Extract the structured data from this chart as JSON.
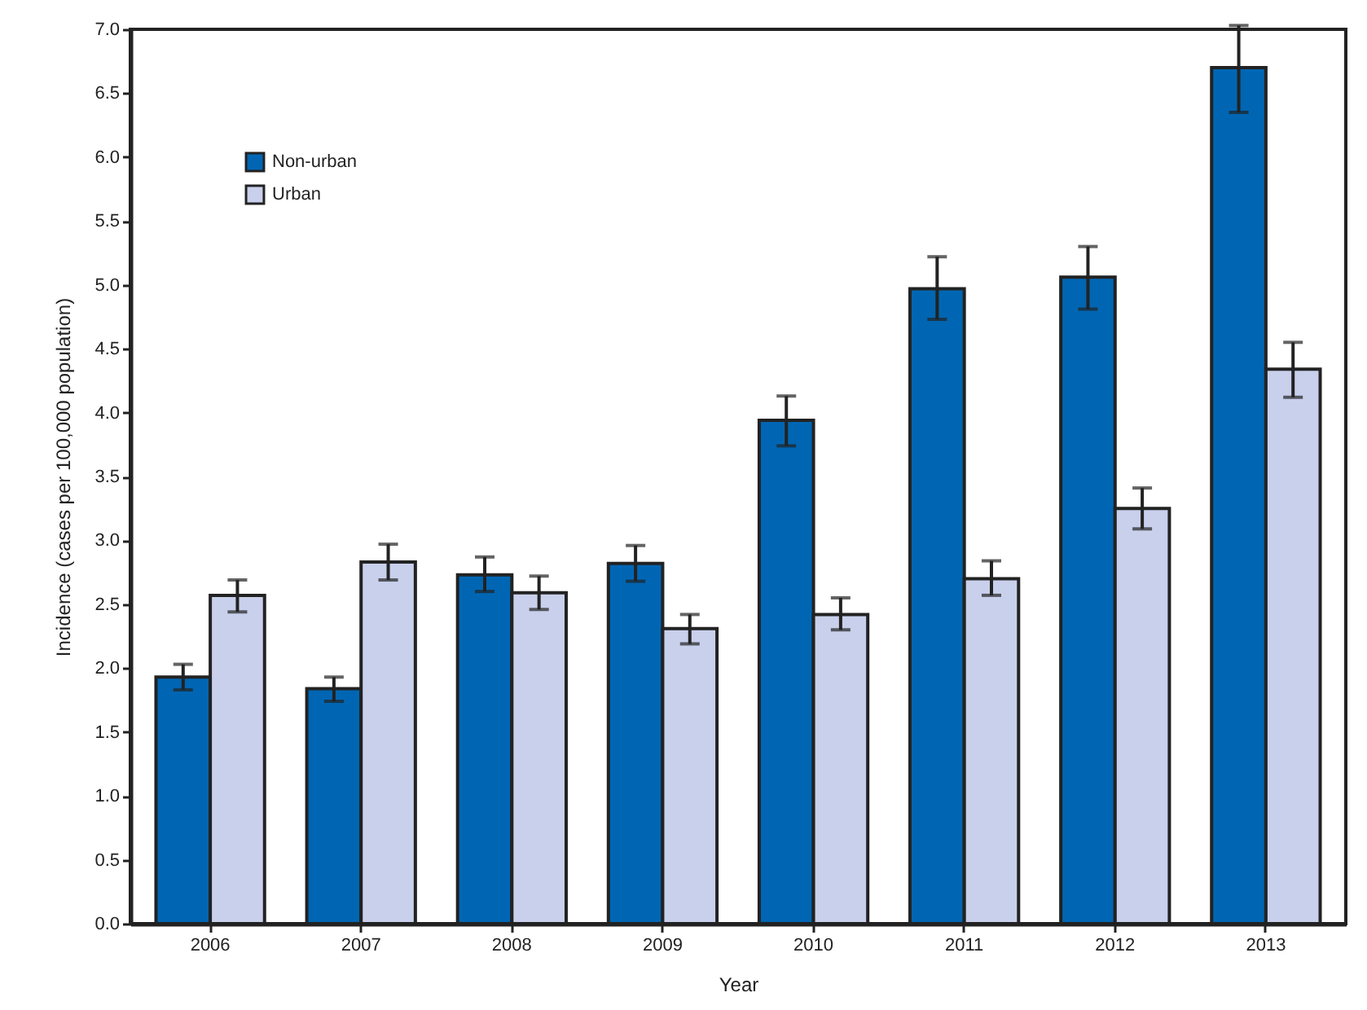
{
  "chart_data": {
    "type": "bar",
    "xlabel": "Year",
    "ylabel": "Incidence (cases per 100,000 population)",
    "categories": [
      "2006",
      "2007",
      "2008",
      "2009",
      "2010",
      "2011",
      "2012",
      "2013"
    ],
    "series": [
      {
        "name": "Non-urban",
        "color": "#0066b3",
        "values": [
          1.93,
          1.84,
          2.73,
          2.82,
          3.94,
          4.97,
          5.06,
          6.7
        ],
        "errors": [
          [
            1.83,
            2.03
          ],
          [
            1.74,
            1.93
          ],
          [
            2.6,
            2.87
          ],
          [
            2.68,
            2.96
          ],
          [
            3.74,
            4.13
          ],
          [
            4.73,
            5.22
          ],
          [
            4.81,
            5.3
          ],
          [
            6.35,
            7.03
          ]
        ]
      },
      {
        "name": "Urban",
        "color": "#c8d0ec",
        "values": [
          2.57,
          2.83,
          2.59,
          2.31,
          2.42,
          2.7,
          3.25,
          4.34
        ],
        "errors": [
          [
            2.44,
            2.69
          ],
          [
            2.69,
            2.97
          ],
          [
            2.46,
            2.72
          ],
          [
            2.19,
            2.42
          ],
          [
            2.3,
            2.55
          ],
          [
            2.57,
            2.84
          ],
          [
            3.09,
            3.41
          ],
          [
            4.12,
            4.55
          ]
        ]
      }
    ],
    "ylim": [
      0,
      7
    ],
    "yticks": [
      {
        "value": 0,
        "label": "0.0"
      },
      0.5,
      {
        "value": 1,
        "label": "1.0"
      },
      1.5,
      {
        "value": 2,
        "label": "2.0"
      },
      2.5,
      {
        "value": 3,
        "label": "3.0"
      },
      3.5,
      {
        "value": 4,
        "label": "4.0"
      },
      4.5,
      {
        "value": 5,
        "label": "5.0"
      },
      5.5,
      {
        "value": 6,
        "label": "6.0"
      },
      6.5,
      {
        "value": 7,
        "label": "7.0"
      }
    ],
    "grid": false,
    "legend": "top left"
  }
}
